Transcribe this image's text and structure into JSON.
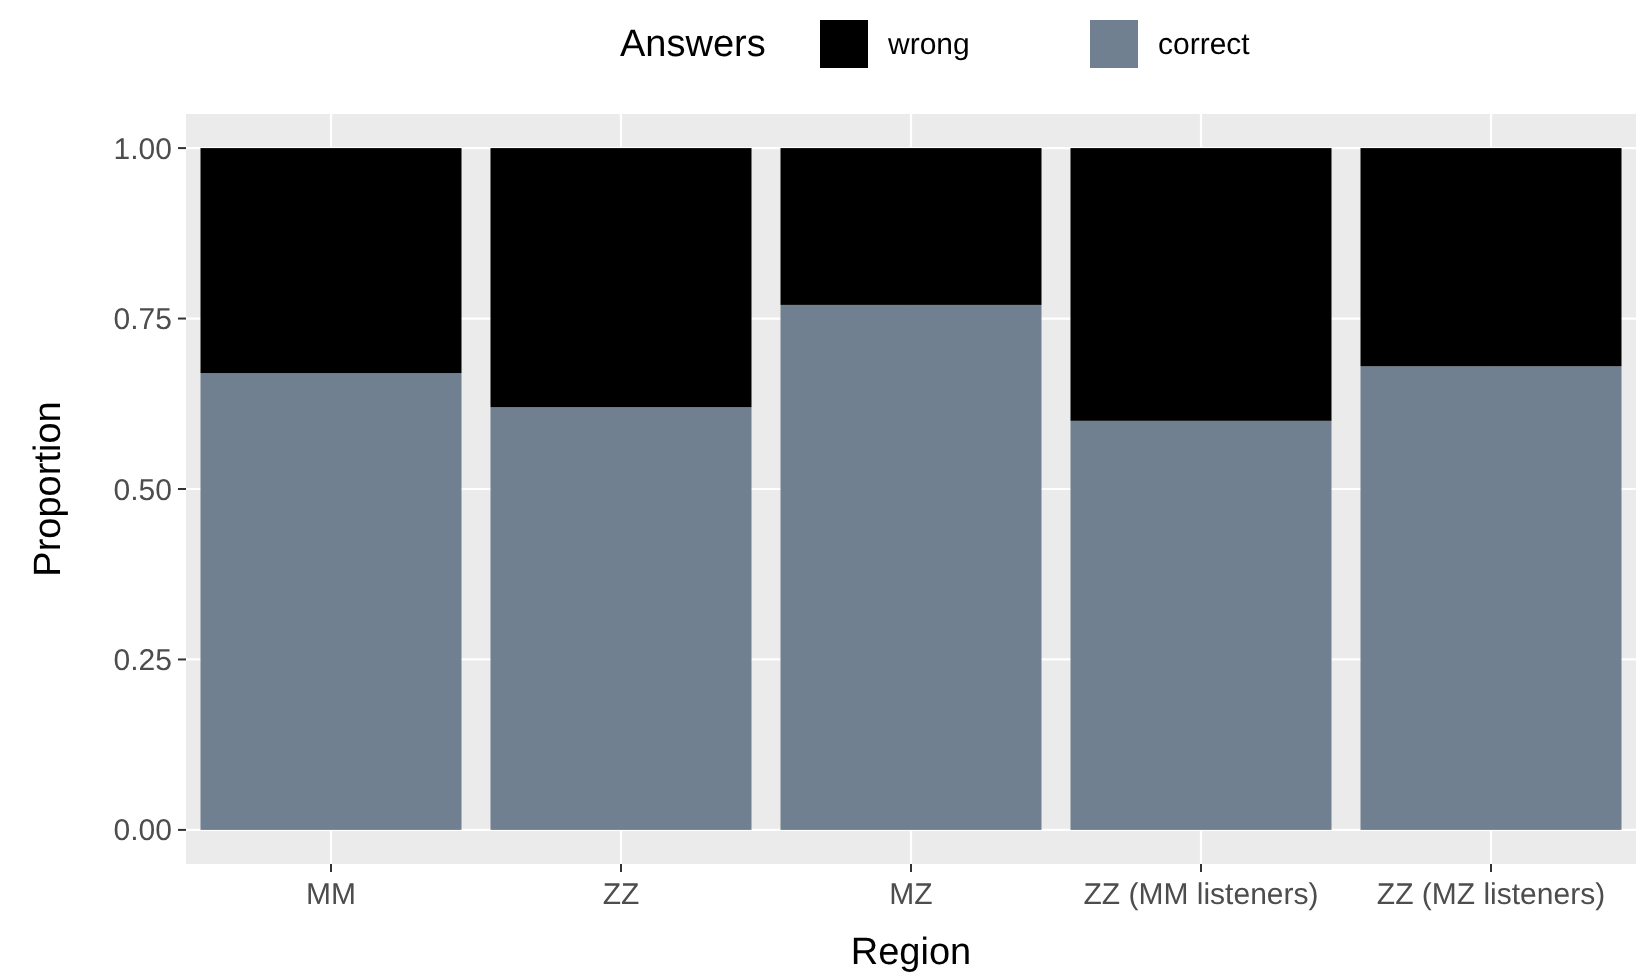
{
  "chart_data": {
    "type": "bar",
    "stacked": true,
    "xlabel": "Region",
    "ylabel": "Proportion",
    "legend_title": "Answers",
    "legend": "top",
    "categories": [
      "MM",
      "ZZ",
      "MZ",
      "ZZ (MM listeners)",
      "ZZ (MZ listeners)"
    ],
    "series": [
      {
        "name": "correct",
        "color": "#708090",
        "values": [
          0.67,
          0.62,
          0.77,
          0.6,
          0.68
        ]
      },
      {
        "name": "wrong",
        "color": "#000000",
        "values": [
          0.33,
          0.38,
          0.23,
          0.4,
          0.32
        ]
      }
    ],
    "ylim": [
      -0.05,
      1.05
    ],
    "yticks": [
      {
        "value": 0,
        "label": "0.00"
      },
      {
        "value": 0.25,
        "label": "0.25"
      },
      {
        "value": 0.5,
        "label": "0.50"
      },
      {
        "value": 0.75,
        "label": "0.75"
      },
      {
        "value": 1,
        "label": "1.00"
      }
    ],
    "grid": true
  }
}
